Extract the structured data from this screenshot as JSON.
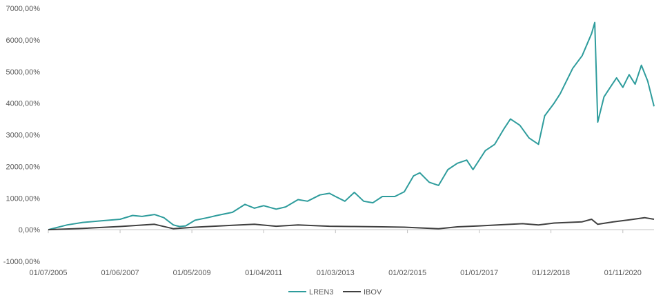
{
  "chart_data": {
    "type": "line",
    "title": "",
    "xlabel": "",
    "ylabel": "",
    "ylim": [
      -1000,
      7000
    ],
    "y_ticks": [
      -1000,
      0,
      1000,
      2000,
      3000,
      4000,
      5000,
      6000,
      7000
    ],
    "y_tick_labels": [
      "-1000,00%",
      "0,00%",
      "1000,00%",
      "2000,00%",
      "3000,00%",
      "4000,00%",
      "5000,00%",
      "6000,00%",
      "7000,00%"
    ],
    "xlim": [
      "2005-07-01",
      "2021-09-01"
    ],
    "x_ticks": [
      "2005-07-01",
      "2007-06-01",
      "2009-05-01",
      "2011-04-01",
      "2013-03-01",
      "2015-02-01",
      "2017-01-01",
      "2018-12-01",
      "2020-11-01"
    ],
    "x_tick_labels": [
      "01/07/2005",
      "01/06/2007",
      "01/05/2009",
      "01/04/2011",
      "01/03/2013",
      "01/02/2015",
      "01/01/2017",
      "01/12/2018",
      "01/11/2020"
    ],
    "grid": false,
    "legend": "bottom",
    "series": [
      {
        "name": "LREN3",
        "color": "#2e9c9c",
        "points": [
          [
            "2005-07-01",
            0
          ],
          [
            "2006-01-01",
            150
          ],
          [
            "2006-06-01",
            230
          ],
          [
            "2006-12-01",
            280
          ],
          [
            "2007-06-01",
            330
          ],
          [
            "2007-10-01",
            450
          ],
          [
            "2008-01-01",
            420
          ],
          [
            "2008-05-01",
            480
          ],
          [
            "2008-08-01",
            380
          ],
          [
            "2008-11-01",
            150
          ],
          [
            "2009-01-01",
            100
          ],
          [
            "2009-03-01",
            120
          ],
          [
            "2009-06-01",
            300
          ],
          [
            "2009-10-01",
            380
          ],
          [
            "2010-01-01",
            450
          ],
          [
            "2010-06-01",
            550
          ],
          [
            "2010-10-01",
            800
          ],
          [
            "2011-01-01",
            680
          ],
          [
            "2011-04-01",
            760
          ],
          [
            "2011-08-01",
            650
          ],
          [
            "2011-11-01",
            720
          ],
          [
            "2012-03-01",
            950
          ],
          [
            "2012-06-01",
            900
          ],
          [
            "2012-10-01",
            1100
          ],
          [
            "2013-01-01",
            1150
          ],
          [
            "2013-03-01",
            1050
          ],
          [
            "2013-06-01",
            900
          ],
          [
            "2013-09-01",
            1180
          ],
          [
            "2013-12-01",
            900
          ],
          [
            "2014-03-01",
            850
          ],
          [
            "2014-06-01",
            1050
          ],
          [
            "2014-10-01",
            1050
          ],
          [
            "2015-01-01",
            1200
          ],
          [
            "2015-04-01",
            1700
          ],
          [
            "2015-06-01",
            1800
          ],
          [
            "2015-09-01",
            1500
          ],
          [
            "2015-12-01",
            1400
          ],
          [
            "2016-03-01",
            1900
          ],
          [
            "2016-06-01",
            2100
          ],
          [
            "2016-09-01",
            2200
          ],
          [
            "2016-11-01",
            1900
          ],
          [
            "2017-03-01",
            2500
          ],
          [
            "2017-06-01",
            2700
          ],
          [
            "2017-09-01",
            3200
          ],
          [
            "2017-11-01",
            3500
          ],
          [
            "2018-02-01",
            3300
          ],
          [
            "2018-05-01",
            2900
          ],
          [
            "2018-08-01",
            2700
          ],
          [
            "2018-10-01",
            3600
          ],
          [
            "2019-01-01",
            4000
          ],
          [
            "2019-03-01",
            4300
          ],
          [
            "2019-07-01",
            5100
          ],
          [
            "2019-10-01",
            5500
          ],
          [
            "2020-01-01",
            6200
          ],
          [
            "2020-02-01",
            6550
          ],
          [
            "2020-03-01",
            3400
          ],
          [
            "2020-05-01",
            4200
          ],
          [
            "2020-07-01",
            4500
          ],
          [
            "2020-09-01",
            4800
          ],
          [
            "2020-11-01",
            4500
          ],
          [
            "2021-01-01",
            4900
          ],
          [
            "2021-03-01",
            4600
          ],
          [
            "2021-05-01",
            5200
          ],
          [
            "2021-07-01",
            4700
          ],
          [
            "2021-09-01",
            3900
          ]
        ]
      },
      {
        "name": "IBOV",
        "color": "#404040",
        "points": [
          [
            "2005-07-01",
            0
          ],
          [
            "2006-06-01",
            40
          ],
          [
            "2007-06-01",
            100
          ],
          [
            "2008-05-01",
            170
          ],
          [
            "2008-11-01",
            30
          ],
          [
            "2009-06-01",
            80
          ],
          [
            "2010-06-01",
            140
          ],
          [
            "2011-01-01",
            170
          ],
          [
            "2011-08-01",
            110
          ],
          [
            "2012-03-01",
            150
          ],
          [
            "2013-01-01",
            110
          ],
          [
            "2013-09-01",
            100
          ],
          [
            "2014-06-01",
            90
          ],
          [
            "2015-01-01",
            80
          ],
          [
            "2015-12-01",
            30
          ],
          [
            "2016-06-01",
            90
          ],
          [
            "2017-01-01",
            120
          ],
          [
            "2017-09-01",
            160
          ],
          [
            "2018-03-01",
            190
          ],
          [
            "2018-08-01",
            150
          ],
          [
            "2019-01-01",
            210
          ],
          [
            "2019-10-01",
            250
          ],
          [
            "2020-01-01",
            330
          ],
          [
            "2020-03-01",
            170
          ],
          [
            "2020-08-01",
            250
          ],
          [
            "2021-01-01",
            310
          ],
          [
            "2021-06-01",
            380
          ],
          [
            "2021-09-01",
            330
          ]
        ]
      }
    ]
  }
}
